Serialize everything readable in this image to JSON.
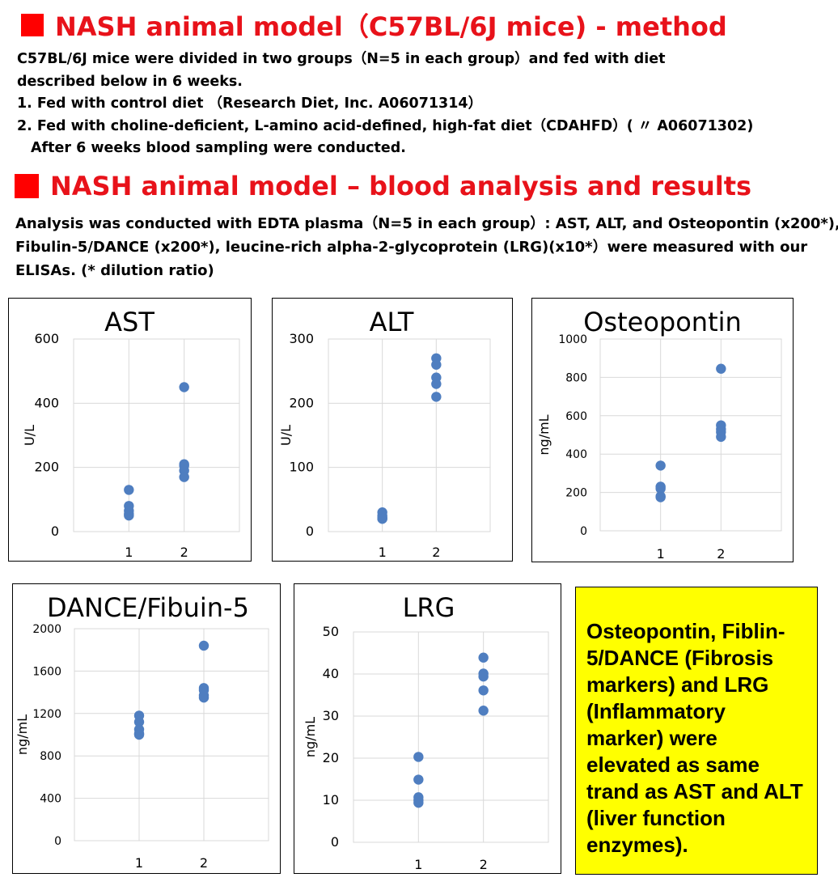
{
  "section1": {
    "title": "NASH animal model（C57BL/6J mice) - method",
    "lines": [
      "C57BL/6J mice were divided in two groups（N=5 in each group）and fed with diet",
      "described below in 6 weeks.",
      "1. Fed with control diet （Research Diet, Inc.  A06071314）",
      "2. Fed with choline-deficient, L-amino acid-defined, high-fat diet（CDAHFD）( 〃 A06071302)",
      "After 6 weeks blood sampling were conducted."
    ]
  },
  "section2": {
    "title": "NASH animal model – blood analysis and results",
    "lines": [
      "Analysis was conducted with EDTA plasma（N=5 in each group）: AST, ALT, and Osteopontin (x200*),",
      "Fibulin-5/DANCE (x200*), leucine-rich alpha-2-glycoprotein (LRG)(x10*）were measured with our",
      "ELISAs. (* dilution ratio)"
    ]
  },
  "chart_data": [
    {
      "type": "scatter",
      "title": "AST",
      "ylabel": "U/L",
      "xlabel": "",
      "x_ticks": [
        "1",
        "2"
      ],
      "y_ticks": [
        0,
        200,
        400,
        600
      ],
      "ylim": [
        0,
        600
      ],
      "xlim": [
        0,
        3
      ],
      "grid": true,
      "points": [
        {
          "x": 1,
          "y": 130
        },
        {
          "x": 1,
          "y": 80
        },
        {
          "x": 1,
          "y": 65
        },
        {
          "x": 1,
          "y": 55
        },
        {
          "x": 1,
          "y": 50
        },
        {
          "x": 2,
          "y": 450
        },
        {
          "x": 2,
          "y": 210
        },
        {
          "x": 2,
          "y": 205
        },
        {
          "x": 2,
          "y": 190
        },
        {
          "x": 2,
          "y": 170
        }
      ]
    },
    {
      "type": "scatter",
      "title": "ALT",
      "ylabel": "U/L",
      "xlabel": "",
      "x_ticks": [
        "1",
        "2"
      ],
      "y_ticks": [
        0,
        100,
        200,
        300
      ],
      "ylim": [
        0,
        300
      ],
      "xlim": [
        0,
        3
      ],
      "grid": true,
      "points": [
        {
          "x": 1,
          "y": 30
        },
        {
          "x": 1,
          "y": 25
        },
        {
          "x": 1,
          "y": 22
        },
        {
          "x": 1,
          "y": 20
        },
        {
          "x": 1,
          "y": 20
        },
        {
          "x": 2,
          "y": 270
        },
        {
          "x": 2,
          "y": 260
        },
        {
          "x": 2,
          "y": 240
        },
        {
          "x": 2,
          "y": 230
        },
        {
          "x": 2,
          "y": 210
        }
      ]
    },
    {
      "type": "scatter",
      "title": "Osteopontin",
      "ylabel": "ng/mL",
      "xlabel": "",
      "x_ticks": [
        "1",
        "2"
      ],
      "y_ticks": [
        0,
        200,
        400,
        600,
        800,
        1000
      ],
      "ylim": [
        0,
        1000
      ],
      "xlim": [
        0,
        3
      ],
      "grid": true,
      "points": [
        {
          "x": 1,
          "y": 340
        },
        {
          "x": 1,
          "y": 230
        },
        {
          "x": 1,
          "y": 220
        },
        {
          "x": 1,
          "y": 180
        },
        {
          "x": 1,
          "y": 175
        },
        {
          "x": 2,
          "y": 845
        },
        {
          "x": 2,
          "y": 550
        },
        {
          "x": 2,
          "y": 530
        },
        {
          "x": 2,
          "y": 515
        },
        {
          "x": 2,
          "y": 490
        }
      ]
    },
    {
      "type": "scatter",
      "title": "DANCE/Fibuin-5",
      "ylabel": "ng/mL",
      "xlabel": "",
      "x_ticks": [
        "1",
        "2"
      ],
      "y_ticks": [
        0,
        400,
        800,
        1200,
        1600,
        2000
      ],
      "ylim": [
        0,
        2000
      ],
      "xlim": [
        0,
        3
      ],
      "grid": true,
      "points": [
        {
          "x": 1,
          "y": 1180
        },
        {
          "x": 1,
          "y": 1120
        },
        {
          "x": 1,
          "y": 1050
        },
        {
          "x": 1,
          "y": 1010
        },
        {
          "x": 1,
          "y": 1000
        },
        {
          "x": 2,
          "y": 1840
        },
        {
          "x": 2,
          "y": 1440
        },
        {
          "x": 2,
          "y": 1420
        },
        {
          "x": 2,
          "y": 1370
        },
        {
          "x": 2,
          "y": 1350
        }
      ]
    },
    {
      "type": "scatter",
      "title": "LRG",
      "ylabel": "ng/mL",
      "xlabel": "",
      "x_ticks": [
        "1",
        "2"
      ],
      "y_ticks": [
        0,
        10,
        20,
        30,
        40,
        50
      ],
      "ylim": [
        0,
        50
      ],
      "xlim": [
        0,
        3
      ],
      "grid": true,
      "points": [
        {
          "x": 1,
          "y": 20.3
        },
        {
          "x": 1,
          "y": 14.9
        },
        {
          "x": 1,
          "y": 10.7
        },
        {
          "x": 1,
          "y": 10.0
        },
        {
          "x": 1,
          "y": 9.4
        },
        {
          "x": 2,
          "y": 43.9
        },
        {
          "x": 2,
          "y": 40.1
        },
        {
          "x": 2,
          "y": 39.4
        },
        {
          "x": 2,
          "y": 36.1
        },
        {
          "x": 2,
          "y": 31.3
        }
      ]
    }
  ],
  "note": "Osteopontin, Fiblin-5/DANCE (Fibrosis markers) and LRG (Inflammatory marker) were elevated as same trand as AST and ALT (liver function enzymes).",
  "colors": {
    "heading": "#e8121a",
    "square": "#ff0000",
    "marker": "#4f7ec0",
    "grid": "#d9d9d9",
    "note_bg": "#ffff00"
  }
}
